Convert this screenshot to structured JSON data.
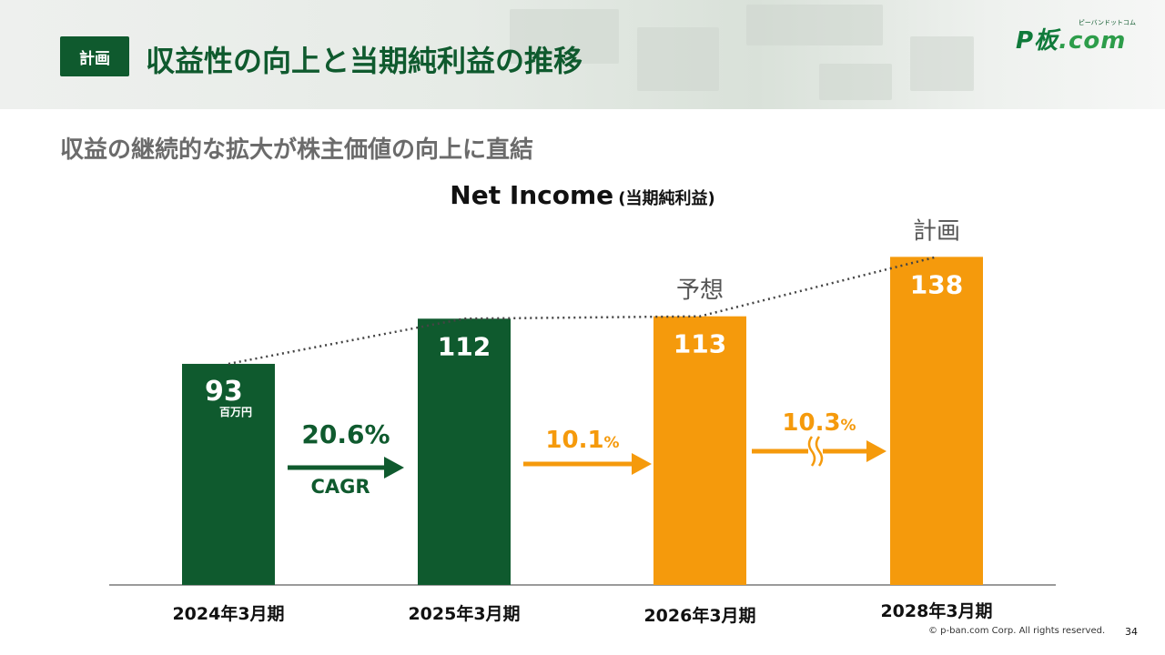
{
  "header": {
    "badge": "計画",
    "title": "収益性の向上と当期純利益の推移",
    "logo_text": "P板",
    "logo_com": ".com",
    "logo_kana": "ピーバンドットコム"
  },
  "subtitle": "収益の継続的な拡大が株主価値の向上に直結",
  "chart_data": {
    "type": "bar",
    "title": "Net Income",
    "title_jp": "(当期純利益)",
    "categories": [
      "2024年3月期",
      "2025年3月期",
      "2026年3月期",
      "2028年3月期"
    ],
    "values": [
      93,
      112,
      113,
      138
    ],
    "value_labels": [
      "93",
      "112",
      "113",
      "138"
    ],
    "unit": "百万円",
    "bar_colors": [
      "#0f5a2e",
      "#0f5a2e",
      "#f59a0c",
      "#f59a0c"
    ],
    "bar_tags": [
      "",
      "",
      "予想",
      "計画"
    ],
    "ylim": [
      0,
      150
    ],
    "growth": [
      {
        "value": "20.6%",
        "suffix": "",
        "sub": "CAGR",
        "color": "#0f5a2e",
        "break": false
      },
      {
        "value": "10.1",
        "suffix": "%",
        "sub": "",
        "color": "#f59a0c",
        "break": false
      },
      {
        "value": "10.3",
        "suffix": "%",
        "sub": "",
        "color": "#f59a0c",
        "break": true
      }
    ]
  },
  "colors": {
    "accent_green": "#0f5a2e",
    "accent_orange": "#f59a0c"
  },
  "footer": {
    "copyright": "©  p-ban.com Corp. All rights reserved.",
    "page": "34"
  }
}
